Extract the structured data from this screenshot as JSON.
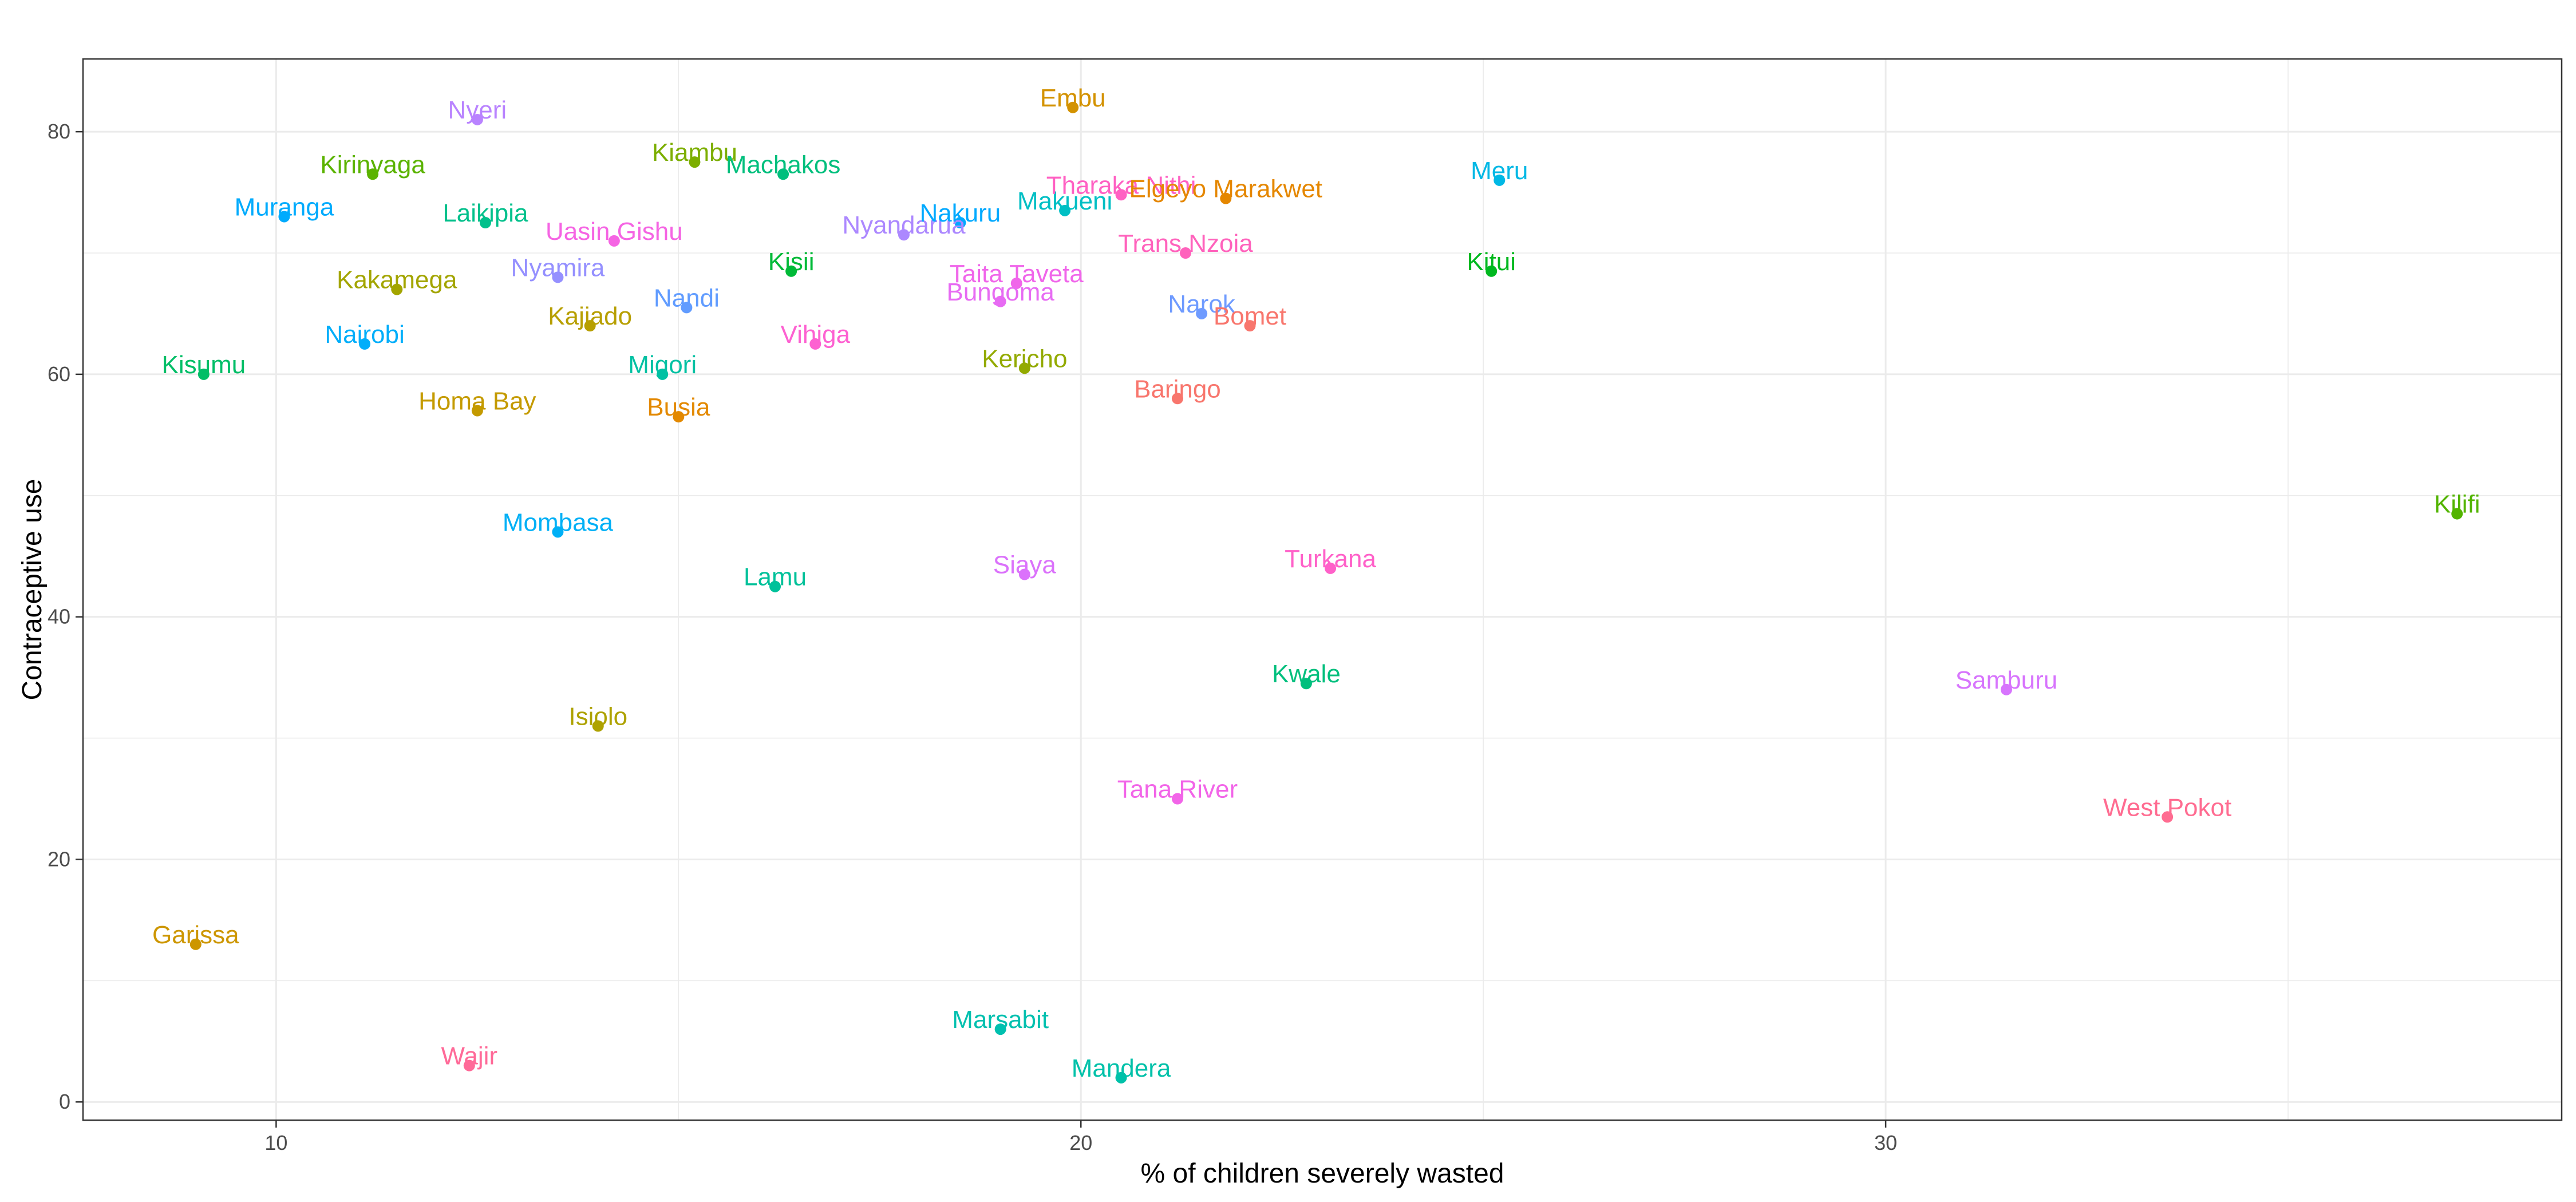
{
  "chart_data": {
    "type": "scatter",
    "title": "",
    "xlabel": "% of children severely wasted",
    "ylabel": "Contraceptive use",
    "xlim": [
      7.6,
      38.4
    ],
    "ylim": [
      -1.5,
      86.0
    ],
    "x_ticks": [
      10,
      20,
      30
    ],
    "y_ticks": [
      0,
      20,
      40,
      60,
      80
    ],
    "grid": true,
    "legend": "none",
    "points": [
      {
        "label": "Nyeri",
        "x": 12.5,
        "y": 81.0,
        "color": "#B983FF"
      },
      {
        "label": "Embu",
        "x": 19.9,
        "y": 82.0,
        "color": "#D39200"
      },
      {
        "label": "Kirinyaga",
        "x": 11.2,
        "y": 76.5,
        "color": "#5BB300"
      },
      {
        "label": "Kiambu",
        "x": 15.2,
        "y": 77.5,
        "color": "#7CAE00"
      },
      {
        "label": "Machakos",
        "x": 16.3,
        "y": 76.5,
        "color": "#00BF7D"
      },
      {
        "label": "Meru",
        "x": 25.2,
        "y": 76.0,
        "color": "#00B8E5"
      },
      {
        "label": "Muranga",
        "x": 10.1,
        "y": 73.0,
        "color": "#00ABFD"
      },
      {
        "label": "Laikipia",
        "x": 12.6,
        "y": 72.5,
        "color": "#00C08B"
      },
      {
        "label": "Uasin Gishu",
        "x": 14.2,
        "y": 71.0,
        "color": "#F564E3"
      },
      {
        "label": "Nyandarua",
        "x": 17.8,
        "y": 71.5,
        "color": "#AC88FF"
      },
      {
        "label": "Nakuru",
        "x": 18.5,
        "y": 72.5,
        "color": "#00A9FF"
      },
      {
        "label": "Makueni",
        "x": 19.8,
        "y": 73.5,
        "color": "#00BFC4"
      },
      {
        "label": "Tharaka Nithi",
        "x": 20.5,
        "y": 74.8,
        "color": "#FF61C3"
      },
      {
        "label": "Elgeyo Marakwet",
        "x": 21.8,
        "y": 74.5,
        "color": "#E58700"
      },
      {
        "label": "Trans Nzoia",
        "x": 21.3,
        "y": 70.0,
        "color": "#FF62BC"
      },
      {
        "label": "Nyamira",
        "x": 13.5,
        "y": 68.0,
        "color": "#9590FF"
      },
      {
        "label": "Kisii",
        "x": 16.4,
        "y": 68.5,
        "color": "#00BA38"
      },
      {
        "label": "Kitui",
        "x": 25.1,
        "y": 68.5,
        "color": "#00B81F"
      },
      {
        "label": "Kakamega",
        "x": 11.5,
        "y": 67.0,
        "color": "#A3A500"
      },
      {
        "label": "Taita Taveta",
        "x": 19.2,
        "y": 67.5,
        "color": "#F066EA"
      },
      {
        "label": "Bungoma",
        "x": 19.0,
        "y": 66.0,
        "color": "#E76BF3"
      },
      {
        "label": "Nandi",
        "x": 15.1,
        "y": 65.5,
        "color": "#619CFF"
      },
      {
        "label": "Narok",
        "x": 21.5,
        "y": 65.0,
        "color": "#6F9BFF"
      },
      {
        "label": "Bomet",
        "x": 22.1,
        "y": 64.0,
        "color": "#F8766D"
      },
      {
        "label": "Kajiado",
        "x": 13.9,
        "y": 64.0,
        "color": "#B79F00"
      },
      {
        "label": "Nairobi",
        "x": 11.1,
        "y": 62.5,
        "color": "#00AEFA"
      },
      {
        "label": "Vihiga",
        "x": 16.7,
        "y": 62.5,
        "color": "#FD61D1"
      },
      {
        "label": "Kisumu",
        "x": 9.1,
        "y": 60.0,
        "color": "#00BE67"
      },
      {
        "label": "Migori",
        "x": 14.8,
        "y": 60.0,
        "color": "#00C1A3"
      },
      {
        "label": "Kericho",
        "x": 19.3,
        "y": 60.5,
        "color": "#93AA00"
      },
      {
        "label": "Baringo",
        "x": 21.2,
        "y": 58.0,
        "color": "#F8766D"
      },
      {
        "label": "Homa Bay",
        "x": 12.5,
        "y": 57.0,
        "color": "#C49A00"
      },
      {
        "label": "Busia",
        "x": 15.0,
        "y": 56.5,
        "color": "#E38900"
      },
      {
        "label": "Kilifi",
        "x": 37.1,
        "y": 48.5,
        "color": "#53B400"
      },
      {
        "label": "Mombasa",
        "x": 13.5,
        "y": 47.0,
        "color": "#00B0F6"
      },
      {
        "label": "Lamu",
        "x": 16.2,
        "y": 42.5,
        "color": "#00C19A"
      },
      {
        "label": "Siaya",
        "x": 19.3,
        "y": 43.5,
        "color": "#DB72FB"
      },
      {
        "label": "Turkana",
        "x": 23.1,
        "y": 44.0,
        "color": "#FF61C9"
      },
      {
        "label": "Kwale",
        "x": 22.8,
        "y": 34.5,
        "color": "#00BF7D"
      },
      {
        "label": "Samburu",
        "x": 31.5,
        "y": 34.0,
        "color": "#D774FD"
      },
      {
        "label": "Isiolo",
        "x": 14.0,
        "y": 31.0,
        "color": "#AEA200"
      },
      {
        "label": "Tana River",
        "x": 21.2,
        "y": 25.0,
        "color": "#F265E8"
      },
      {
        "label": "West Pokot",
        "x": 33.5,
        "y": 23.5,
        "color": "#FF6C91"
      },
      {
        "label": "Garissa",
        "x": 9.0,
        "y": 13.0,
        "color": "#CD9600"
      },
      {
        "label": "Marsabit",
        "x": 19.0,
        "y": 6.0,
        "color": "#00C0AF"
      },
      {
        "label": "Wajir",
        "x": 12.4,
        "y": 3.0,
        "color": "#FF6A98"
      },
      {
        "label": "Mandera",
        "x": 20.5,
        "y": 2.0,
        "color": "#00C1A9"
      }
    ]
  }
}
